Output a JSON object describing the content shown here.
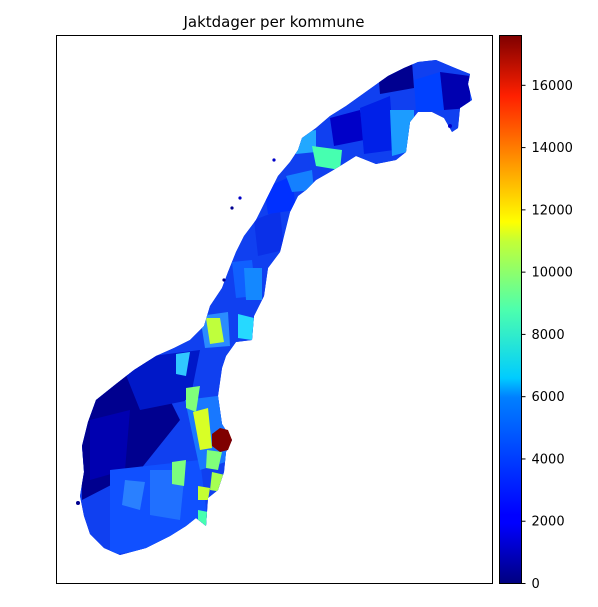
{
  "chart_data": {
    "type": "choropleth-map",
    "title": "Jaktdager per kommune",
    "region": "Norway",
    "colormap": "jet",
    "colorbar": {
      "min": 0,
      "max": 17600,
      "ticks": [
        0,
        2000,
        4000,
        6000,
        8000,
        10000,
        12000,
        14000,
        16000
      ],
      "tick_labels": [
        "0",
        "2000",
        "4000",
        "6000",
        "8000",
        "10000",
        "12000",
        "14000",
        "16000"
      ]
    },
    "axes_ticks_visible": false,
    "highlights": [
      {
        "area": "south-east near Swedish border",
        "value": 17600
      },
      {
        "area": "inland south-east",
        "value": 11000
      },
      {
        "area": "central Norway (Trøndelag)",
        "value": 10500
      },
      {
        "area": "Finnmark / Troms border",
        "value": 7000
      }
    ]
  }
}
